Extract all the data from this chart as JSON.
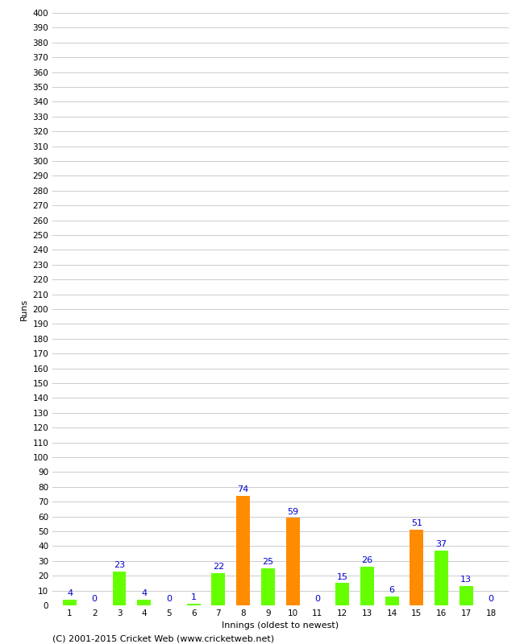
{
  "xlabel": "Innings (oldest to newest)",
  "ylabel": "Runs",
  "footer": "(C) 2001-2015 Cricket Web (www.cricketweb.net)",
  "innings": [
    1,
    2,
    3,
    4,
    5,
    6,
    7,
    8,
    9,
    10,
    11,
    12,
    13,
    14,
    15,
    16,
    17,
    18
  ],
  "values": [
    4,
    0,
    23,
    4,
    0,
    1,
    22,
    74,
    25,
    59,
    0,
    15,
    26,
    6,
    51,
    37,
    13,
    0
  ],
  "fifty_plus": [
    false,
    false,
    false,
    false,
    false,
    false,
    false,
    true,
    false,
    true,
    false,
    false,
    false,
    false,
    true,
    false,
    false,
    false
  ],
  "ylim": [
    0,
    400
  ],
  "ytick_step": 10,
  "bar_color_normal": "#66ff00",
  "bar_color_fifty": "#ff8c00",
  "label_color": "#0000cc",
  "background_color": "#ffffff",
  "grid_color": "#cccccc",
  "label_fontsize": 8,
  "tick_fontsize": 7.5,
  "footer_fontsize": 8,
  "bar_width": 0.55
}
